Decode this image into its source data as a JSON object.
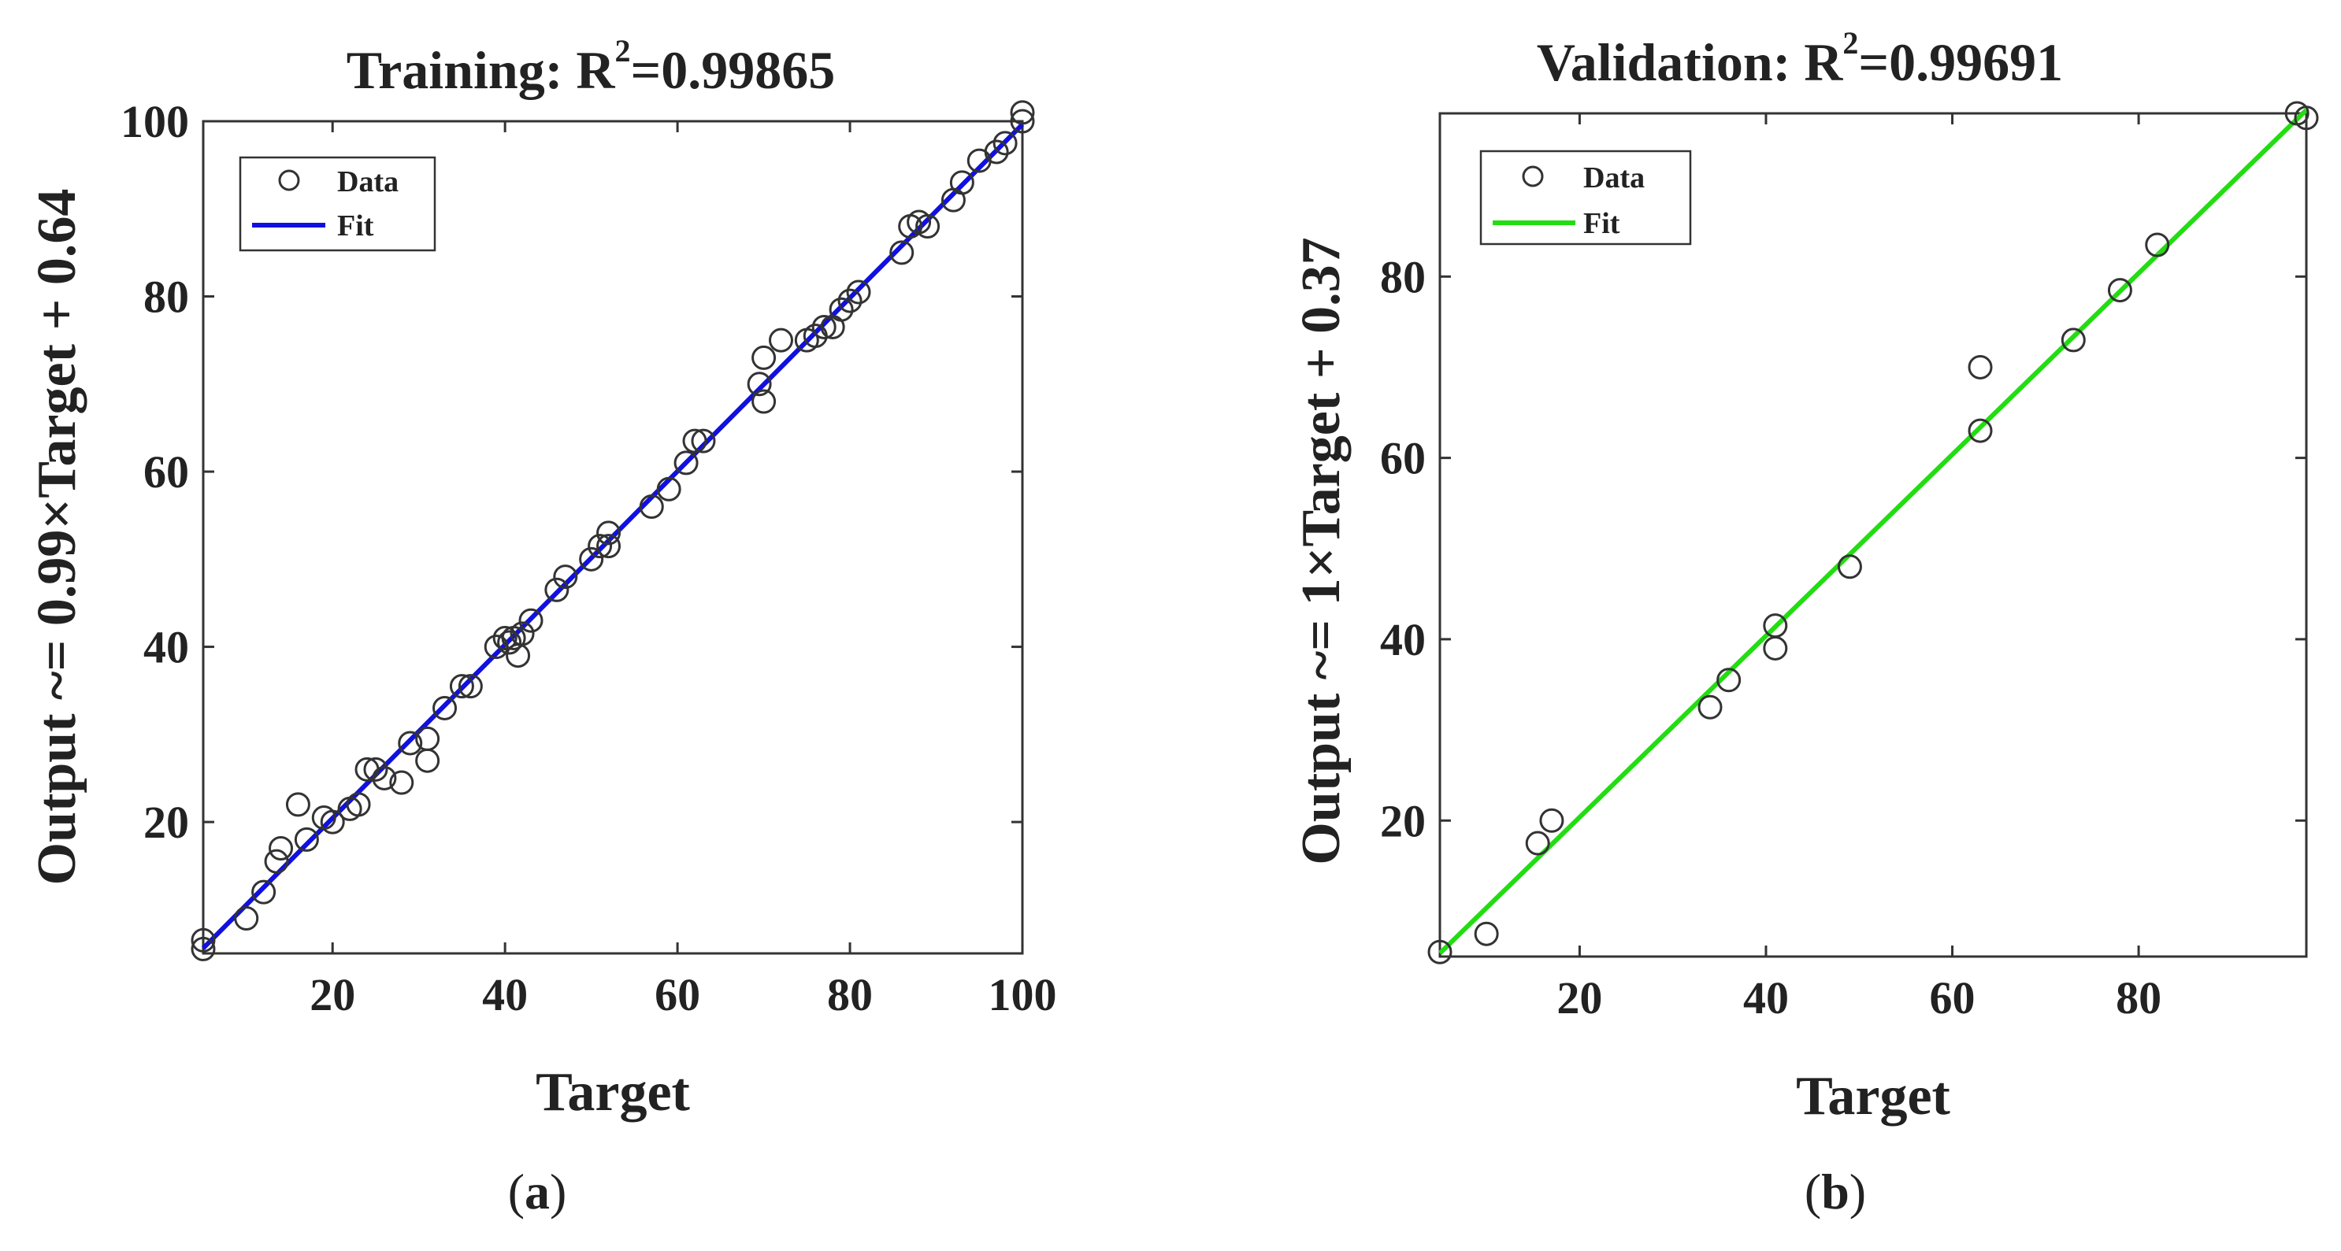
{
  "chart_data": [
    {
      "type": "scatter",
      "title_prefix": "Training: R",
      "title_sup": "2",
      "title_suffix": "=0.99865",
      "r_squared": 0.99865,
      "xlabel": "Target",
      "ylabel": "Output ~= 0.99×Target + 0.64",
      "xlim": [
        5,
        100
      ],
      "ylim": [
        5,
        100
      ],
      "xticks": [
        20,
        40,
        60,
        80,
        100
      ],
      "yticks": [
        20,
        40,
        60,
        80,
        100
      ],
      "legend": {
        "position": "top-left",
        "entries": [
          "Data",
          "Fit"
        ]
      },
      "fit": {
        "slope": 0.99,
        "intercept": 0.64,
        "color": "#1010e0"
      },
      "points": [
        [
          5,
          5.5
        ],
        [
          5,
          6.5
        ],
        [
          10,
          9
        ],
        [
          12,
          12
        ],
        [
          13.5,
          15.5
        ],
        [
          14,
          17
        ],
        [
          16,
          22
        ],
        [
          17,
          18
        ],
        [
          19,
          20.5
        ],
        [
          20,
          20
        ],
        [
          22,
          21.5
        ],
        [
          23,
          22
        ],
        [
          24,
          26
        ],
        [
          25,
          26
        ],
        [
          26,
          25
        ],
        [
          28,
          24.5
        ],
        [
          29,
          29
        ],
        [
          31,
          27
        ],
        [
          31,
          29.5
        ],
        [
          33,
          33
        ],
        [
          35,
          35.5
        ],
        [
          36,
          35.5
        ],
        [
          39,
          40
        ],
        [
          40,
          41
        ],
        [
          40.5,
          40.5
        ],
        [
          41,
          41
        ],
        [
          41.5,
          39
        ],
        [
          42,
          41.5
        ],
        [
          43,
          43
        ],
        [
          46,
          46.5
        ],
        [
          47,
          48
        ],
        [
          50,
          50
        ],
        [
          51,
          51.5
        ],
        [
          52,
          53
        ],
        [
          52,
          51.5
        ],
        [
          57,
          56
        ],
        [
          59,
          58
        ],
        [
          61,
          61
        ],
        [
          62,
          63.5
        ],
        [
          63,
          63.5
        ],
        [
          69.5,
          70
        ],
        [
          70,
          73
        ],
        [
          70,
          68
        ],
        [
          72,
          75
        ],
        [
          75,
          75
        ],
        [
          76,
          75.5
        ],
        [
          77,
          76.5
        ],
        [
          78,
          76.5
        ],
        [
          79,
          78.5
        ],
        [
          80,
          79.5
        ],
        [
          81,
          80.5
        ],
        [
          86,
          85
        ],
        [
          87,
          88
        ],
        [
          88,
          88.5
        ],
        [
          89,
          88
        ],
        [
          92,
          91
        ],
        [
          93,
          93
        ],
        [
          95,
          95.5
        ],
        [
          97,
          96.5
        ],
        [
          98,
          97.5
        ],
        [
          100,
          100
        ],
        [
          100,
          101
        ]
      ],
      "caption": "a"
    },
    {
      "type": "scatter",
      "title_prefix": "Validation: R",
      "title_sup": "2",
      "title_suffix": "=0.99691",
      "r_squared": 0.99691,
      "xlabel": "Target",
      "ylabel": "Output ~= 1×Target + 0.37",
      "xlim": [
        5,
        98
      ],
      "ylim": [
        5,
        98
      ],
      "xticks": [
        20,
        40,
        60,
        80
      ],
      "yticks": [
        20,
        40,
        60,
        80
      ],
      "legend": {
        "position": "top-left",
        "entries": [
          "Data",
          "Fit"
        ]
      },
      "fit": {
        "slope": 1,
        "intercept": 0.37,
        "color": "#22dd11"
      },
      "points": [
        [
          5,
          5.5
        ],
        [
          10,
          7.5
        ],
        [
          15.5,
          17.5
        ],
        [
          17,
          20
        ],
        [
          34,
          32.5
        ],
        [
          36,
          35.5
        ],
        [
          41,
          39
        ],
        [
          41,
          41.5
        ],
        [
          49,
          48
        ],
        [
          63,
          63
        ],
        [
          63,
          70
        ],
        [
          73,
          73
        ],
        [
          78,
          78.5
        ],
        [
          82,
          83.5
        ],
        [
          97,
          98
        ],
        [
          98,
          97.5
        ]
      ],
      "caption": "b"
    }
  ]
}
